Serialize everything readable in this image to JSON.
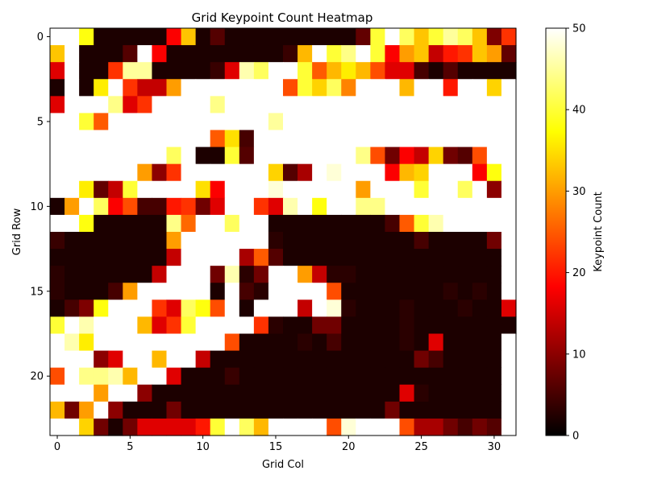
{
  "chart_data": {
    "type": "heatmap",
    "title": "Grid Keypoint Count Heatmap",
    "xlabel": "Grid Col",
    "ylabel": "Grid Row",
    "colorbar_label": "Keypoint Count",
    "colormap": "hot",
    "vmin": 0,
    "vmax": 50,
    "n_rows": 24,
    "n_cols": 32,
    "xlim": [
      -0.5,
      31.5
    ],
    "ylim": [
      23.5,
      -0.5
    ],
    "x_ticks": [
      0,
      5,
      10,
      15,
      20,
      25,
      30
    ],
    "y_ticks": [
      0,
      5,
      10,
      15,
      20
    ],
    "colorbar_ticks": [
      0,
      10,
      20,
      30,
      40,
      50
    ],
    "grid": false,
    "values": [
      [
        50,
        50,
        38,
        2,
        2,
        2,
        2,
        2,
        18,
        33,
        2,
        6,
        2,
        2,
        2,
        2,
        2,
        2,
        2,
        2,
        2,
        7,
        40,
        50,
        42,
        33,
        40,
        45,
        42,
        33,
        9,
        22
      ],
      [
        33,
        50,
        2,
        2,
        2,
        6,
        50,
        18,
        2,
        2,
        2,
        2,
        2,
        2,
        2,
        2,
        4,
        32,
        50,
        40,
        44,
        50,
        40,
        18,
        30,
        33,
        14,
        20,
        22,
        33,
        30,
        7
      ],
      [
        16,
        50,
        2,
        2,
        22,
        45,
        45,
        2,
        2,
        2,
        2,
        4,
        16,
        46,
        42,
        50,
        50,
        40,
        25,
        32,
        36,
        32,
        24,
        16,
        16,
        5,
        2,
        6,
        2,
        2,
        2,
        2
      ],
      [
        2,
        50,
        2,
        36,
        50,
        22,
        14,
        14,
        30,
        50,
        50,
        50,
        50,
        50,
        50,
        50,
        24,
        40,
        34,
        42,
        28,
        50,
        50,
        50,
        32,
        50,
        50,
        20,
        50,
        50,
        34,
        50
      ],
      [
        16,
        50,
        50,
        50,
        44,
        16,
        22,
        50,
        50,
        50,
        50,
        44,
        50,
        50,
        50,
        50,
        50,
        50,
        50,
        50,
        50,
        50,
        50,
        50,
        50,
        50,
        50,
        50,
        50,
        50,
        50,
        50
      ],
      [
        50,
        50,
        40,
        25,
        50,
        50,
        50,
        50,
        50,
        50,
        50,
        50,
        50,
        50,
        50,
        45,
        50,
        50,
        50,
        50,
        50,
        50,
        50,
        50,
        50,
        50,
        50,
        50,
        50,
        50,
        50,
        50
      ],
      [
        50,
        50,
        50,
        50,
        50,
        50,
        50,
        50,
        50,
        50,
        50,
        25,
        35,
        5,
        50,
        50,
        50,
        50,
        50,
        50,
        50,
        50,
        50,
        50,
        50,
        50,
        50,
        50,
        50,
        50,
        50,
        50
      ],
      [
        50,
        50,
        50,
        50,
        50,
        50,
        50,
        50,
        42,
        50,
        2,
        2,
        40,
        6,
        50,
        50,
        50,
        50,
        50,
        50,
        50,
        44,
        24,
        8,
        18,
        14,
        34,
        8,
        6,
        24,
        50,
        50
      ],
      [
        50,
        50,
        50,
        50,
        50,
        50,
        30,
        10,
        22,
        50,
        50,
        50,
        50,
        50,
        50,
        34,
        6,
        12,
        50,
        48,
        50,
        50,
        50,
        18,
        32,
        34,
        50,
        50,
        50,
        18,
        38,
        50
      ],
      [
        50,
        50,
        36,
        7,
        14,
        40,
        50,
        50,
        50,
        50,
        35,
        18,
        50,
        50,
        50,
        48,
        50,
        50,
        50,
        50,
        50,
        30,
        50,
        50,
        50,
        40,
        50,
        50,
        42,
        50,
        10,
        50
      ],
      [
        2,
        30,
        50,
        42,
        18,
        24,
        5,
        5,
        20,
        22,
        8,
        16,
        50,
        50,
        22,
        16,
        46,
        50,
        38,
        50,
        50,
        44,
        44,
        50,
        50,
        50,
        50,
        50,
        50,
        50,
        50,
        50
      ],
      [
        50,
        50,
        38,
        2,
        2,
        2,
        2,
        2,
        44,
        26,
        50,
        50,
        42,
        50,
        50,
        2,
        2,
        2,
        2,
        2,
        2,
        2,
        2,
        5,
        25,
        40,
        46,
        50,
        50,
        50,
        50,
        50
      ],
      [
        4,
        2,
        2,
        2,
        2,
        2,
        2,
        2,
        30,
        50,
        50,
        50,
        50,
        50,
        50,
        3,
        2,
        2,
        2,
        2,
        2,
        2,
        2,
        2,
        2,
        5,
        2,
        2,
        2,
        2,
        8,
        50
      ],
      [
        2,
        2,
        2,
        2,
        2,
        2,
        2,
        2,
        14,
        50,
        50,
        50,
        50,
        12,
        25,
        6,
        2,
        2,
        2,
        2,
        2,
        2,
        2,
        2,
        2,
        2,
        2,
        2,
        2,
        2,
        2,
        50
      ],
      [
        3,
        2,
        2,
        2,
        2,
        2,
        2,
        14,
        50,
        50,
        50,
        8,
        46,
        3,
        8,
        50,
        50,
        30,
        14,
        3,
        3,
        2,
        2,
        2,
        2,
        2,
        2,
        2,
        2,
        2,
        2,
        50
      ],
      [
        3,
        2,
        2,
        2,
        5,
        30,
        50,
        50,
        50,
        50,
        50,
        2,
        50,
        5,
        3,
        50,
        50,
        50,
        50,
        24,
        2,
        2,
        2,
        2,
        2,
        2,
        2,
        3,
        2,
        3,
        2,
        50
      ],
      [
        2,
        5,
        9,
        38,
        50,
        50,
        50,
        22,
        16,
        42,
        38,
        24,
        50,
        2,
        50,
        50,
        50,
        14,
        50,
        48,
        3,
        2,
        2,
        2,
        3,
        2,
        2,
        2,
        3,
        2,
        2,
        16
      ],
      [
        40,
        50,
        46,
        50,
        50,
        50,
        32,
        16,
        22,
        40,
        50,
        50,
        50,
        50,
        22,
        3,
        2,
        2,
        8,
        8,
        2,
        2,
        2,
        2,
        3,
        2,
        2,
        2,
        2,
        2,
        2,
        2
      ],
      [
        50,
        46,
        36,
        50,
        50,
        50,
        50,
        50,
        50,
        50,
        50,
        50,
        24,
        2,
        2,
        2,
        2,
        3,
        2,
        5,
        2,
        2,
        2,
        2,
        3,
        2,
        16,
        2,
        2,
        2,
        2,
        50
      ],
      [
        50,
        50,
        50,
        10,
        16,
        50,
        50,
        32,
        50,
        50,
        14,
        2,
        2,
        2,
        2,
        2,
        2,
        2,
        2,
        2,
        2,
        2,
        2,
        2,
        2,
        8,
        5,
        2,
        2,
        2,
        2,
        50
      ],
      [
        24,
        50,
        44,
        44,
        46,
        32,
        50,
        50,
        16,
        2,
        2,
        2,
        4,
        2,
        2,
        2,
        2,
        2,
        2,
        2,
        2,
        2,
        2,
        2,
        2,
        2,
        2,
        2,
        2,
        2,
        2,
        50
      ],
      [
        50,
        50,
        50,
        30,
        50,
        50,
        10,
        2,
        2,
        2,
        2,
        2,
        2,
        2,
        2,
        2,
        2,
        2,
        2,
        2,
        2,
        2,
        2,
        2,
        16,
        3,
        2,
        2,
        2,
        2,
        2,
        50
      ],
      [
        32,
        8,
        30,
        50,
        10,
        2,
        2,
        2,
        8,
        2,
        2,
        2,
        2,
        2,
        2,
        2,
        2,
        2,
        2,
        2,
        2,
        2,
        2,
        8,
        2,
        2,
        2,
        2,
        2,
        2,
        2,
        50
      ],
      [
        50,
        50,
        34,
        8,
        2,
        8,
        16,
        16,
        16,
        16,
        20,
        40,
        50,
        42,
        32,
        50,
        50,
        50,
        50,
        24,
        48,
        50,
        50,
        50,
        24,
        12,
        12,
        8,
        5,
        8,
        6,
        50
      ]
    ]
  }
}
